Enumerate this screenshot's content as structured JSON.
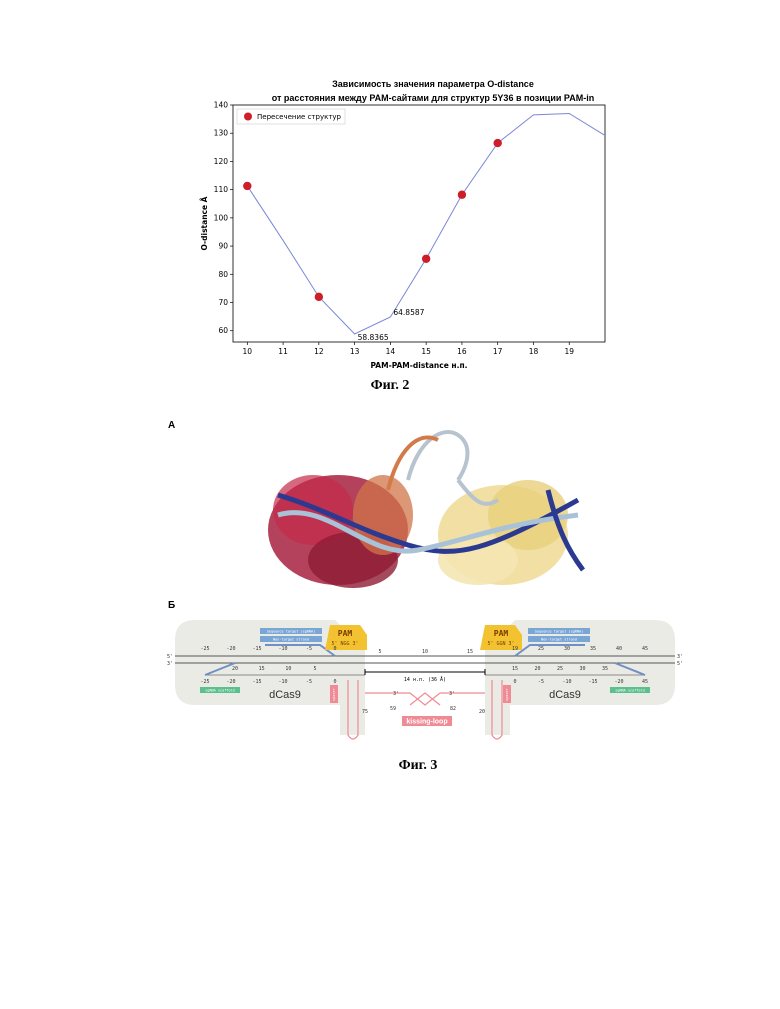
{
  "figure2": {
    "caption": "Фиг. 2",
    "chart_data": {
      "type": "line",
      "title": "Зависимость значения параметра O-distance\nот расстояния между PAM-сайтами для структур 5Y36 в позиции PAM-in",
      "xlabel": "PAM-PAM-distance н.п.",
      "ylabel": "O-distance Å",
      "xlim": [
        9.6,
        20.0
      ],
      "ylim": [
        56,
        140
      ],
      "xticks": [
        10,
        11,
        12,
        13,
        14,
        15,
        16,
        17,
        18,
        19
      ],
      "yticks": [
        60,
        70,
        80,
        90,
        100,
        110,
        120,
        130,
        140
      ],
      "grid": false,
      "legend_position": "top-left",
      "series": [
        {
          "type": "line",
          "color": "#7b86d6",
          "points": [
            [
              10,
              111.3
            ],
            [
              11,
              92
            ],
            [
              12,
              72
            ],
            [
              13,
              58.8365
            ],
            [
              14,
              64.8587
            ],
            [
              15,
              85.5
            ],
            [
              16,
              108.2
            ],
            [
              17,
              126.5
            ],
            [
              18,
              136.5
            ],
            [
              19,
              137
            ],
            [
              20,
              129.2
            ]
          ]
        },
        {
          "name": "Пересечение структур",
          "type": "scatter",
          "color": "#cc1f2a",
          "points": [
            [
              10,
              111.3
            ],
            [
              12,
              72
            ],
            [
              15,
              85.5
            ],
            [
              16,
              108.2
            ],
            [
              17,
              126.5
            ]
          ]
        }
      ],
      "annotations": [
        {
          "text": "58.8365",
          "x": 13,
          "y": 58.8365
        },
        {
          "text": "64.8587",
          "x": 14,
          "y": 64.8587
        }
      ]
    }
  },
  "figure3": {
    "caption": "Фиг. 3",
    "panel_a": "А",
    "panel_b": "Б",
    "scheme": {
      "protein_left": "dCas9",
      "protein_right": "dCas9",
      "pam_left": "PAM",
      "pam_left_seq": "5' NGG 3'",
      "pam_right": "PAM",
      "pam_right_seq": "5' GGN 3'",
      "distance_label": "14 н.п. (36 Å)",
      "kissing_loop": "kissing-loop",
      "end_5": "5'",
      "end_3": "3'",
      "top_ticks_left": [
        "-25",
        "-20",
        "-15",
        "-10",
        "-5",
        "0"
      ],
      "bottom_ticks_left": [
        "-25",
        "-20",
        "-15",
        "-10",
        "-5",
        "0"
      ],
      "mid_ticks_left": [
        "20",
        "15",
        "10",
        "5"
      ],
      "center_ticks": [
        "5",
        "10",
        "15"
      ],
      "top_ticks_right": [
        "19",
        "25",
        "30",
        "35",
        "40",
        "45"
      ],
      "mid_ticks_right": [
        "15",
        "20",
        "25",
        "30",
        "35"
      ],
      "bottom_ticks_right": [
        "0",
        "-5",
        "-10",
        "-15",
        "-20",
        "45"
      ],
      "loop_left_label": "75",
      "loop_right_label": "20",
      "loop_inner_left": "59",
      "loop_inner_right": "82",
      "tag_top_left": "Sequence target (sgRNA)",
      "tag_mid_left": "Non-target strand",
      "tag_bottom_left": "sgRNA scaffold",
      "tag_top_right": "Sequence target (sgRNA)",
      "tag_mid_right": "Non-target strand",
      "tag_bottom_right": "sgRNA scaffold",
      "side_left": "spacer",
      "side_right": "spacer"
    }
  },
  "colors": {
    "line": "#7b86d6",
    "marker": "#cc1f2a",
    "pam": "#f2c230",
    "kissing": "#f08a94",
    "scaffold_green": "#5cbf8e",
    "tag_blue": "#7aa6d6",
    "bg_shape": "#ebebe6"
  }
}
